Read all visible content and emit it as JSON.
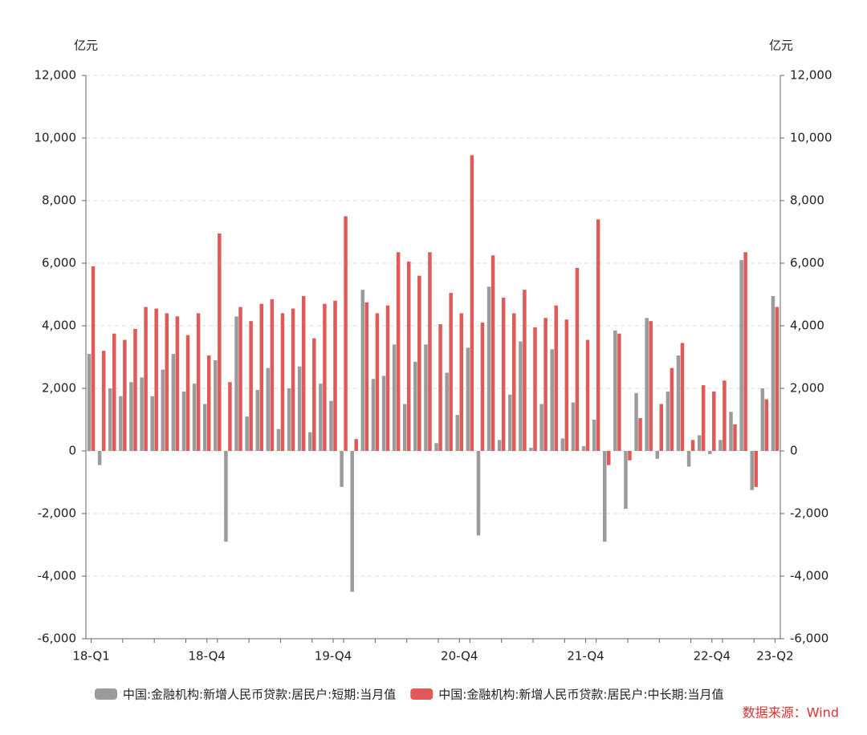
{
  "chart_data": {
    "type": "bar",
    "y_unit_label": "亿元",
    "y2_unit_label": "亿元",
    "source": "数据来源：Wind",
    "categories": [
      "18-Q1",
      null,
      null,
      null,
      null,
      null,
      null,
      null,
      null,
      null,
      null,
      "18-Q4",
      null,
      null,
      null,
      null,
      null,
      null,
      null,
      null,
      null,
      null,
      null,
      "19-Q4",
      null,
      null,
      null,
      null,
      null,
      null,
      null,
      null,
      null,
      null,
      null,
      "20-Q4",
      null,
      null,
      null,
      null,
      null,
      null,
      null,
      null,
      null,
      null,
      null,
      "21-Q4",
      null,
      null,
      null,
      null,
      null,
      null,
      null,
      null,
      null,
      null,
      null,
      "22-Q4",
      null,
      null,
      null,
      null,
      null,
      "23-Q2"
    ],
    "series": [
      {
        "name": "中国:金融机构:新增人民币贷款:居民户:短期:当月值",
        "color": "#9b9b9b",
        "values": [
          3100,
          -450,
          2000,
          1750,
          2200,
          2350,
          1750,
          2600,
          3100,
          1900,
          2150,
          1500,
          2900,
          -2900,
          4300,
          1100,
          1950,
          2650,
          700,
          2000,
          2700,
          600,
          2150,
          1600,
          -1150,
          -4500,
          5150,
          2300,
          2400,
          3400,
          1500,
          2850,
          3400,
          250,
          2500,
          1150,
          3300,
          -2700,
          5250,
          350,
          1800,
          3500,
          100,
          1500,
          3250,
          400,
          1550,
          150,
          1000,
          -2900,
          3850,
          -1850,
          1850,
          4250,
          -250,
          1900,
          3050,
          -500,
          500,
          -100,
          350,
          1250,
          6100,
          -1250,
          2000,
          4950
        ]
      },
      {
        "name": "中国:金融机构:新增人民币贷款:居民户:中长期:当月值",
        "color": "#e05a5a",
        "axis": "y2",
        "values": [
          5900,
          3200,
          3750,
          3550,
          3900,
          4600,
          4550,
          4400,
          4300,
          3700,
          4400,
          3050,
          6950,
          2200,
          4600,
          4150,
          4700,
          4850,
          4400,
          4550,
          4950,
          3600,
          4700,
          4800,
          7500,
          380,
          4750,
          4400,
          4650,
          6350,
          6050,
          5600,
          6350,
          4050,
          5050,
          4400,
          9450,
          4100,
          6250,
          4900,
          4400,
          5150,
          3950,
          4250,
          4650,
          4200,
          5850,
          3550,
          7400,
          -450,
          3750,
          -300,
          1050,
          4150,
          1500,
          2650,
          3450,
          350,
          2100,
          1900,
          2250,
          850,
          6350,
          -1150,
          1650,
          4600
        ]
      }
    ],
    "ylim": [
      -6000,
      12000
    ],
    "yticks": [
      {
        "value": -6000,
        "label": "-6,000"
      },
      {
        "value": -4000,
        "label": "-4,000"
      },
      {
        "value": -2000,
        "label": "-2,000"
      },
      0,
      {
        "value": 2000,
        "label": "2,000"
      },
      {
        "value": 4000,
        "label": "4,000"
      },
      {
        "value": 6000,
        "label": "6,000"
      },
      {
        "value": 8000,
        "label": "8,000"
      },
      {
        "value": 10000,
        "label": "10,000"
      },
      {
        "value": 12000,
        "label": "12,000"
      }
    ],
    "y2lim": [
      -6000,
      12000
    ],
    "y2ticks": [
      {
        "value": -6000,
        "label": "-6,000"
      },
      {
        "value": -4000,
        "label": "-4,000"
      },
      {
        "value": -2000,
        "label": "-2,000"
      },
      0,
      {
        "value": 2000,
        "label": "2,000"
      },
      {
        "value": 4000,
        "label": "4,000"
      },
      {
        "value": 6000,
        "label": "6,000"
      },
      {
        "value": 8000,
        "label": "8,000"
      },
      {
        "value": 10000,
        "label": "10,000"
      },
      {
        "value": 12000,
        "label": "12,000"
      }
    ],
    "grid": true,
    "legend": "bottom"
  }
}
